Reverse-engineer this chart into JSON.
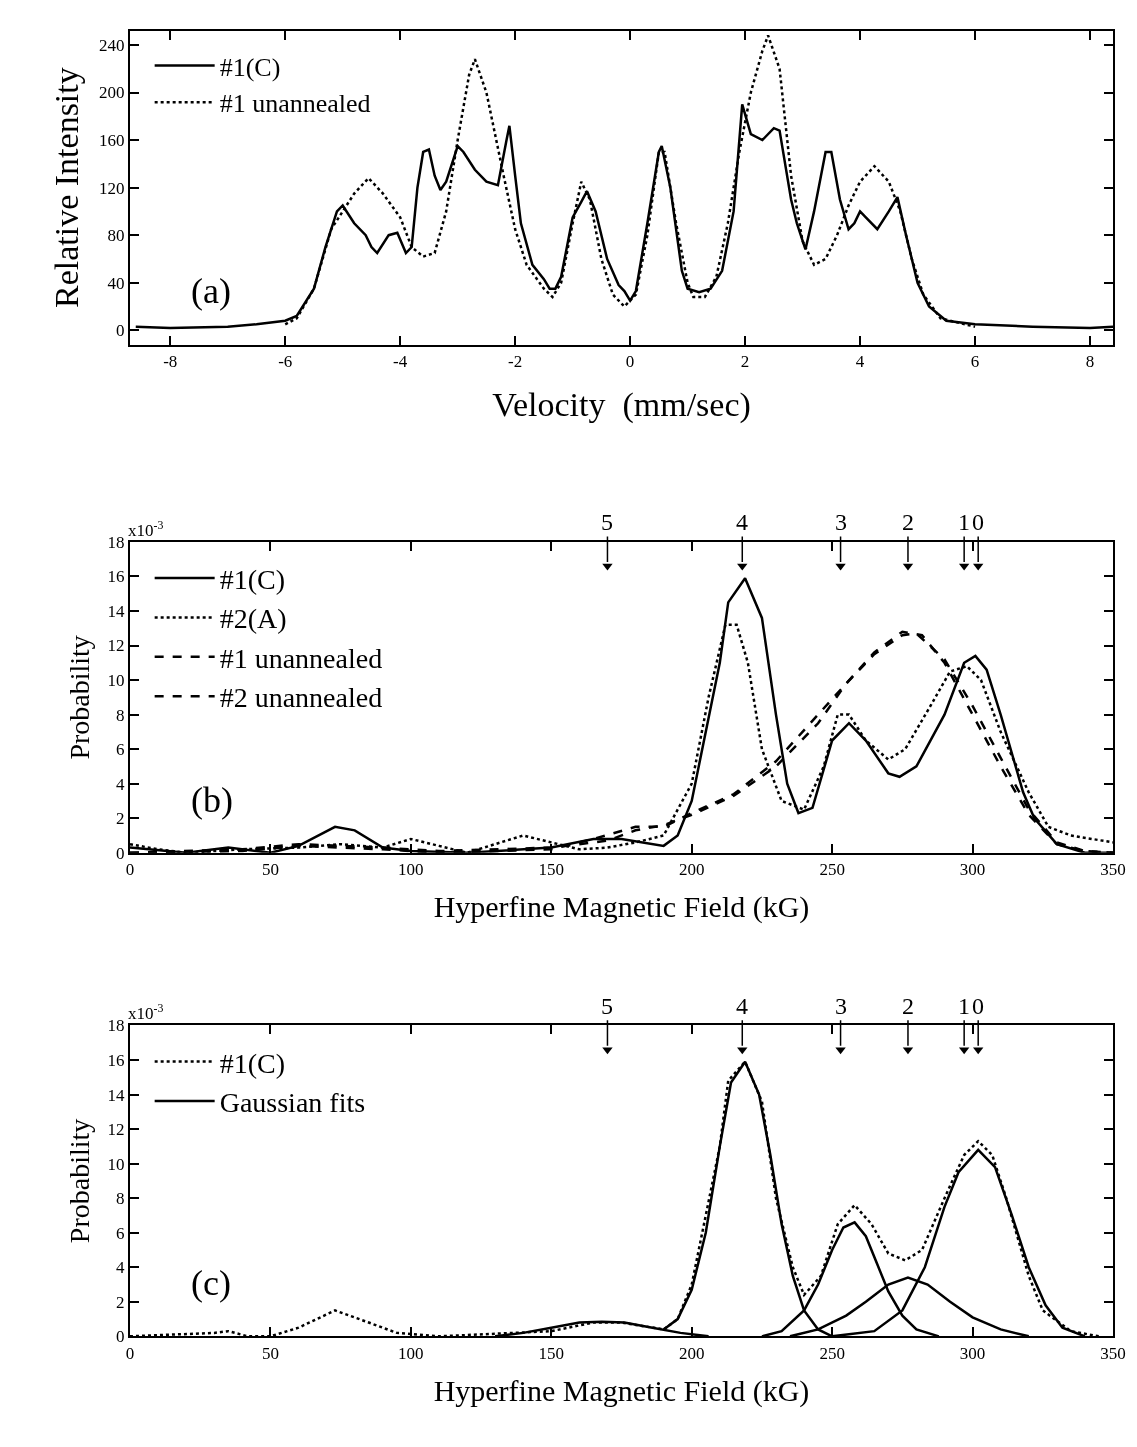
{
  "chart_data": [
    {
      "type": "line",
      "xlabel": "Velocity  (mm/sec)",
      "ylabel": "Relative Intensity",
      "xlim": [
        -8.7,
        8.4
      ],
      "ylim": [
        -12,
        252
      ],
      "xticks": [
        -8,
        -6,
        -4,
        -2,
        0,
        2,
        4,
        6,
        8
      ],
      "yticks": [
        0,
        40,
        80,
        120,
        160,
        200,
        240
      ],
      "legend": "top left",
      "annotations": [
        "(a)"
      ],
      "series": [
        {
          "name": "#1(C)",
          "color": "#000000",
          "line_style": "solid",
          "x": [
            -8.6,
            -8,
            -7,
            -6.5,
            -6,
            -5.8,
            -5.5,
            -5.3,
            -5.1,
            -5.0,
            -4.8,
            -4.6,
            -4.5,
            -4.4,
            -4.2,
            -4.05,
            -3.9,
            -3.8,
            -3.7,
            -3.6,
            -3.5,
            -3.4,
            -3.3,
            -3.2,
            -3.0,
            -2.9,
            -2.7,
            -2.5,
            -2.3,
            -2.15,
            -2.1,
            -2.0,
            -1.9,
            -1.7,
            -1.5,
            -1.4,
            -1.3,
            -1.2,
            -1.0,
            -0.85,
            -0.75,
            -0.6,
            -0.4,
            -0.2,
            -0.1,
            0,
            0.1,
            0.3,
            0.5,
            0.55,
            0.7,
            0.9,
            1.0,
            1.2,
            1.4,
            1.6,
            1.8,
            1.95,
            2.1,
            2.3,
            2.5,
            2.6,
            2.8,
            2.9,
            3.05,
            3.2,
            3.4,
            3.5,
            3.65,
            3.8,
            3.9,
            4.0,
            4.1,
            4.3,
            4.5,
            4.65,
            4.8,
            5.0,
            5.2,
            5.5,
            6,
            7,
            8,
            8.4
          ],
          "values": [
            3,
            2,
            3,
            5,
            8,
            12,
            35,
            70,
            100,
            105,
            90,
            80,
            70,
            65,
            80,
            82,
            65,
            70,
            120,
            150,
            152,
            130,
            118,
            125,
            155,
            150,
            135,
            125,
            122,
            160,
            172,
            130,
            90,
            55,
            43,
            35,
            35,
            45,
            95,
            108,
            117,
            100,
            60,
            38,
            33,
            25,
            33,
            90,
            150,
            155,
            120,
            50,
            35,
            32,
            35,
            50,
            100,
            190,
            165,
            160,
            170,
            168,
            110,
            90,
            68,
            100,
            150,
            150,
            110,
            85,
            90,
            100,
            95,
            85,
            100,
            112,
            80,
            40,
            20,
            8,
            5,
            3,
            2,
            3
          ]
        },
        {
          "name": "#1 unannealed",
          "color": "#000000",
          "line_style": "dotted",
          "x": [
            -6,
            -5.8,
            -5.5,
            -5.2,
            -5.0,
            -4.8,
            -4.55,
            -4.3,
            -4.0,
            -3.8,
            -3.6,
            -3.4,
            -3.2,
            -3.0,
            -2.8,
            -2.7,
            -2.5,
            -2.2,
            -2.0,
            -1.8,
            -1.5,
            -1.35,
            -1.2,
            -1.0,
            -0.85,
            -0.7,
            -0.5,
            -0.3,
            -0.1,
            0.1,
            0.3,
            0.5,
            0.6,
            0.8,
            1.0,
            1.1,
            1.3,
            1.5,
            1.7,
            1.9,
            2.1,
            2.3,
            2.4,
            2.6,
            2.8,
            3.0,
            3.2,
            3.4,
            3.6,
            3.8,
            4.0,
            4.25,
            4.5,
            4.7,
            4.9,
            5.1,
            5.4,
            6
          ],
          "values": [
            5,
            10,
            35,
            85,
            100,
            115,
            128,
            115,
            95,
            70,
            62,
            65,
            100,
            160,
            215,
            228,
            200,
            130,
            85,
            55,
            35,
            28,
            40,
            90,
            125,
            110,
            60,
            30,
            20,
            30,
            80,
            150,
            150,
            90,
            40,
            28,
            28,
            45,
            90,
            150,
            200,
            235,
            248,
            220,
            130,
            75,
            55,
            60,
            80,
            105,
            125,
            138,
            125,
            100,
            60,
            30,
            10,
            3
          ]
        }
      ]
    },
    {
      "type": "line",
      "xlabel": "Hyperfine Magnetic Field (kG)",
      "ylabel": "Probability",
      "xlim": [
        0,
        350
      ],
      "ylim": [
        0,
        18
      ],
      "xticks": [
        0,
        50,
        100,
        150,
        200,
        250,
        300,
        350
      ],
      "yticks": [
        0,
        2,
        4,
        6,
        8,
        10,
        12,
        14,
        16,
        18
      ],
      "legend": "top left",
      "annotations": [
        "(b)",
        "x10$^{-3}$",
        {
          "text": "5",
          "x": 170,
          "y": 16.6
        },
        {
          "text": "4",
          "x": 218,
          "y": 16.6
        },
        {
          "text": "3",
          "x": 253,
          "y": 16.6
        },
        {
          "text": "2",
          "x": 277,
          "y": 16.6
        },
        {
          "text": "1",
          "x": 297,
          "y": 16.6
        },
        {
          "text": "0",
          "x": 302,
          "y": 16.6
        }
      ],
      "series": [
        {
          "type": "scatter",
          "color": "#000000",
          "marker": "triangle",
          "x": [
            170,
            218,
            253,
            277,
            297,
            302
          ],
          "values": [
            16.6,
            16.6,
            16.6,
            16.6,
            16.6,
            16.6
          ]
        },
        {
          "name": "#1(C)",
          "color": "#000000",
          "line_style": "solid",
          "x": [
            0,
            20,
            35,
            50,
            60,
            73,
            80,
            90,
            100,
            120,
            150,
            165,
            175,
            190,
            195,
            200,
            210,
            213,
            219,
            225,
            230,
            234,
            238,
            243,
            250,
            256,
            262,
            270,
            274,
            280,
            290,
            297,
            301,
            305,
            310,
            318,
            322,
            330,
            340,
            350
          ],
          "values": [
            0.3,
            0,
            0.3,
            0,
            0.4,
            1.5,
            1.3,
            0.3,
            0.1,
            0,
            0.3,
            0.8,
            0.8,
            0.4,
            1,
            3,
            11,
            14.5,
            15.9,
            13.6,
            8,
            4,
            2.3,
            2.6,
            6.5,
            7.5,
            6.5,
            4.6,
            4.4,
            5,
            8,
            11,
            11.4,
            10.6,
            8,
            3.5,
            2,
            0.5,
            0,
            0
          ]
        },
        {
          "name": "#2(A)",
          "color": "#000000",
          "line_style": "dotted",
          "x": [
            0,
            10,
            20,
            40,
            60,
            75,
            90,
            100,
            110,
            120,
            140,
            150,
            160,
            170,
            180,
            190,
            200,
            206,
            212,
            216,
            220,
            225,
            232,
            240,
            247,
            252,
            256,
            262,
            270,
            276,
            285,
            292,
            298,
            303,
            310,
            320,
            327,
            335,
            350
          ],
          "values": [
            0.5,
            0.2,
            0,
            0.2,
            0.3,
            0.5,
            0.3,
            0.8,
            0.4,
            0,
            1.0,
            0.6,
            0.2,
            0.3,
            0.6,
            1.0,
            4,
            9,
            13.2,
            13.2,
            11,
            6,
            3,
            2.5,
            5,
            8,
            8.0,
            6.5,
            5.4,
            6,
            8.5,
            10.5,
            10.8,
            10,
            7,
            3.5,
            1.5,
            1,
            0.6
          ]
        },
        {
          "name": "#1 unannealed",
          "color": "#000000",
          "line_style": "dashed",
          "x": [
            0,
            40,
            60,
            90,
            110,
            150,
            170,
            180,
            190,
            200,
            215,
            230,
            245,
            255,
            265,
            275,
            280,
            290,
            300,
            310,
            320,
            330,
            340,
            350
          ],
          "values": [
            0,
            0.2,
            0.5,
            0.3,
            0.1,
            0.3,
            0.7,
            1.3,
            1.6,
            2.2,
            3.3,
            5,
            7.5,
            9.8,
            11.5,
            12.6,
            12.7,
            11.2,
            8.5,
            5.5,
            2.5,
            0.6,
            0.1,
            0
          ]
        },
        {
          "name": "#2 unannealed",
          "color": "#000000",
          "line_style": "dashed",
          "x": [
            0,
            40,
            60,
            90,
            110,
            150,
            165,
            180,
            190,
            200,
            215,
            230,
            245,
            255,
            265,
            275,
            282,
            290,
            300,
            310,
            320,
            330,
            340,
            350
          ],
          "values": [
            0,
            0.1,
            0.4,
            0.2,
            0,
            0.2,
            0.8,
            1.5,
            1.5,
            2.3,
            3.4,
            5.3,
            8,
            9.8,
            11.6,
            12.8,
            12.6,
            11,
            8,
            5,
            2.2,
            0.5,
            0.1,
            0
          ]
        }
      ]
    },
    {
      "type": "line",
      "xlabel": "Hyperfine Magnetic Field (kG)",
      "ylabel": "Probability",
      "xlim": [
        0,
        350
      ],
      "ylim": [
        0,
        18
      ],
      "xticks": [
        0,
        50,
        100,
        150,
        200,
        250,
        300,
        350
      ],
      "yticks": [
        0,
        2,
        4,
        6,
        8,
        10,
        12,
        14,
        16,
        18
      ],
      "legend": "top left",
      "annotations": [
        "(c)",
        "x10$^{-3}$",
        {
          "text": "5",
          "x": 170,
          "y": 16.6
        },
        {
          "text": "4",
          "x": 218,
          "y": 16.6
        },
        {
          "text": "3",
          "x": 253,
          "y": 16.6
        },
        {
          "text": "2",
          "x": 277,
          "y": 16.6
        },
        {
          "text": "1",
          "x": 297,
          "y": 16.6
        },
        {
          "text": "0",
          "x": 302,
          "y": 16.6
        }
      ],
      "series": [
        {
          "type": "scatter",
          "color": "#000000",
          "marker": "triangle",
          "x": [
            170,
            218,
            253,
            277,
            297,
            302
          ],
          "values": [
            16.6,
            16.6,
            16.6,
            16.6,
            16.6,
            16.6
          ]
        },
        {
          "name": "#1(C)",
          "color": "#000000",
          "line_style": "dotted",
          "x": [
            0,
            30,
            35,
            42,
            50,
            60,
            73,
            85,
            95,
            110,
            150,
            165,
            175,
            190,
            195,
            200,
            210,
            213,
            219,
            225,
            230,
            236,
            240,
            246,
            252,
            258,
            264,
            270,
            276,
            282,
            290,
            297,
            302,
            307,
            312,
            320,
            325,
            335,
            345
          ],
          "values": [
            0,
            0.2,
            0.3,
            0,
            0,
            0.5,
            1.5,
            0.8,
            0.2,
            0,
            0.3,
            0.8,
            0.8,
            0.4,
            1,
            3,
            11,
            14.8,
            15.9,
            13.6,
            8,
            4,
            2.4,
            3.5,
            6.5,
            7.6,
            6.5,
            4.8,
            4.4,
            5,
            8,
            10.5,
            11.3,
            10.5,
            8,
            3.5,
            1.5,
            0.3,
            0
          ]
        },
        {
          "name": "Gaussian fits",
          "color": "#000000",
          "line_style": "solid",
          "x": [
            130,
            140,
            150,
            160,
            168,
            176,
            186,
            196,
            206
          ],
          "values": [
            0,
            0.2,
            0.5,
            0.8,
            0.85,
            0.8,
            0.5,
            0.2,
            0
          ]
        },
        {
          "color": "#000000",
          "line_style": "solid",
          "x": [
            190,
            195,
            200,
            205,
            210,
            214,
            219,
            224,
            228,
            232,
            236,
            240,
            245,
            250
          ],
          "values": [
            0.4,
            1,
            2.7,
            6,
            11,
            14.7,
            15.9,
            14,
            10.5,
            6.5,
            3.5,
            1.5,
            0.4,
            0
          ]
        },
        {
          "color": "#000000",
          "line_style": "solid",
          "x": [
            225,
            232,
            240,
            245,
            250,
            254,
            258,
            262,
            266,
            270,
            275,
            280,
            288
          ],
          "values": [
            0,
            0.3,
            1.5,
            3,
            5,
            6.3,
            6.6,
            5.8,
            4.2,
            2.6,
            1.2,
            0.4,
            0
          ]
        },
        {
          "color": "#000000",
          "line_style": "solid",
          "x": [
            235,
            245,
            255,
            262,
            270,
            277,
            284,
            292,
            300,
            310,
            320
          ],
          "values": [
            0,
            0.4,
            1.2,
            2,
            3.0,
            3.4,
            3.0,
            2.0,
            1.1,
            0.4,
            0
          ]
        },
        {
          "color": "#000000",
          "line_style": "solid",
          "x": [
            250,
            265,
            275,
            283,
            290,
            295,
            302,
            308,
            314,
            320,
            326,
            332,
            340
          ],
          "values": [
            0,
            0.3,
            1.5,
            4,
            7.5,
            9.5,
            10.8,
            9.8,
            7,
            4,
            1.8,
            0.5,
            0
          ]
        }
      ]
    }
  ]
}
